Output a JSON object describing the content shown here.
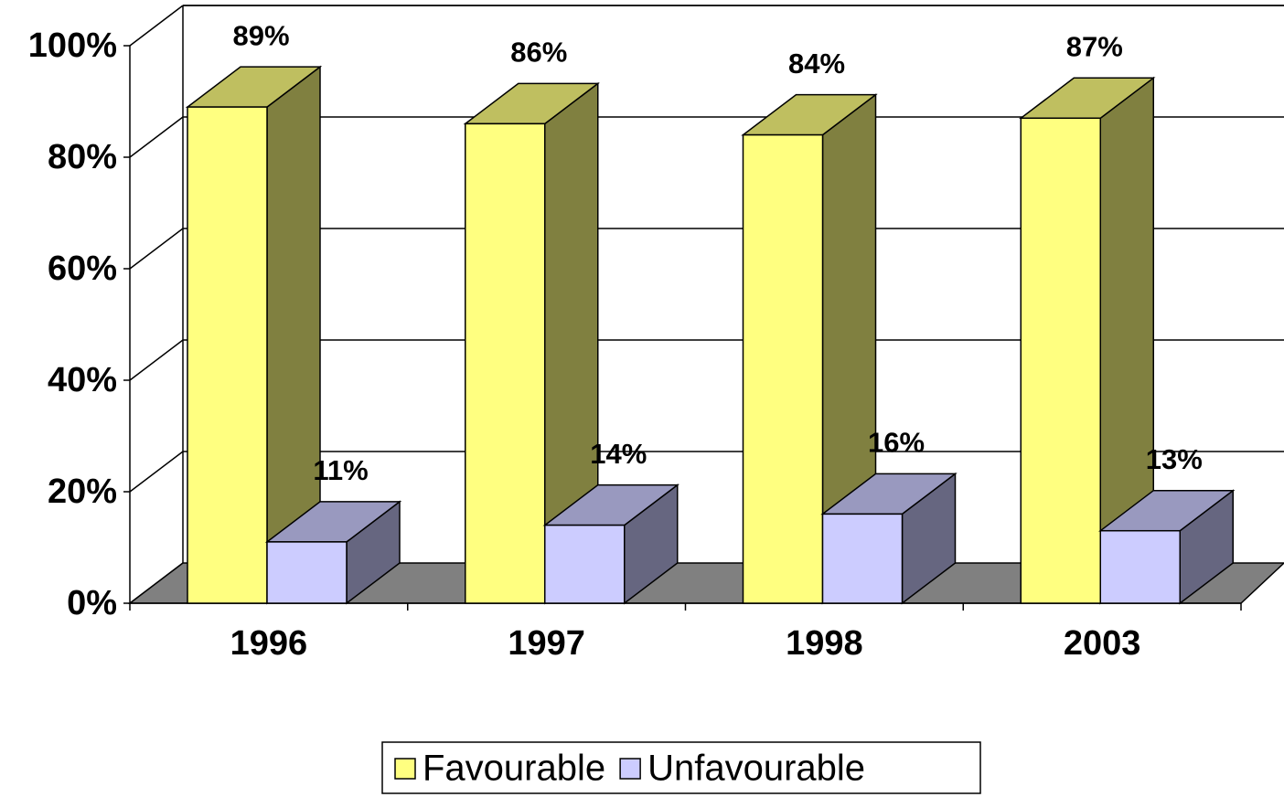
{
  "chart_data": {
    "type": "bar3d",
    "categories": [
      "1996",
      "1997",
      "1998",
      "2003"
    ],
    "series": [
      {
        "name": "Favourable",
        "color": "#ffff80",
        "values": [
          89,
          86,
          84,
          87
        ],
        "value_labels": [
          "89%",
          "86%",
          "84%",
          "87%"
        ]
      },
      {
        "name": "Unfavourable",
        "color": "#ccccff",
        "values": [
          11,
          14,
          16,
          13
        ],
        "value_labels": [
          "11%",
          "14%",
          "16%",
          "13%"
        ]
      }
    ],
    "ylim": [
      0,
      100
    ],
    "yticks": [
      {
        "value": 0,
        "label": "0%"
      },
      {
        "value": 20,
        "label": "20%"
      },
      {
        "value": 40,
        "label": "40%"
      },
      {
        "value": 60,
        "label": "60%"
      },
      {
        "value": 80,
        "label": "80%"
      },
      {
        "value": 100,
        "label": "100%"
      }
    ],
    "grid": true,
    "legend": "bottom"
  }
}
